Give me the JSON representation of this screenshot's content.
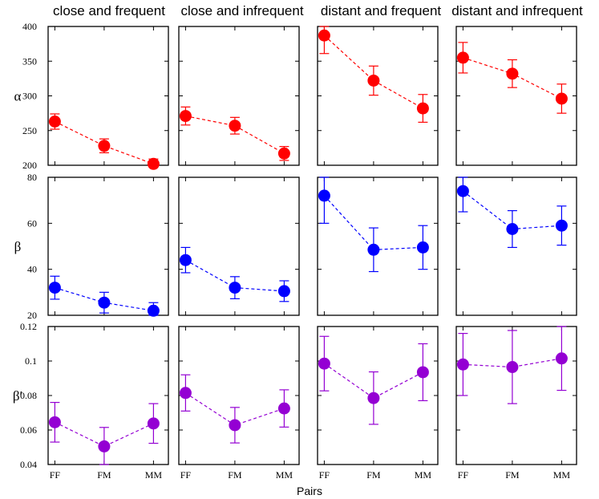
{
  "chart_data": {
    "type": "line",
    "xlabel": "Pairs",
    "categories": [
      "FF",
      "FM",
      "MM"
    ],
    "columns": [
      "close and frequent",
      "close and infrequent",
      "distant and frequent",
      "distant and infrequent"
    ],
    "rows": [
      {
        "label": "α",
        "color": "#ff0000",
        "ylim": [
          200,
          400
        ],
        "yticks": [
          "200",
          "250",
          "300",
          "350",
          "400"
        ],
        "panels": [
          {
            "values": [
              263,
              228,
              202
            ],
            "err": [
              11,
              10,
              7
            ]
          },
          {
            "values": [
              271,
              257,
              217
            ],
            "err": [
              13,
              12,
              10
            ]
          },
          {
            "values": [
              387,
              322,
              282
            ],
            "err": [
              26,
              21,
              20
            ]
          },
          {
            "values": [
              355,
              332,
              296
            ],
            "err": [
              22,
              20,
              21
            ]
          }
        ]
      },
      {
        "label": "β",
        "color": "#0000ff",
        "ylim": [
          20,
          80
        ],
        "yticks": [
          "20",
          "40",
          "60",
          "80"
        ],
        "panels": [
          {
            "values": [
              32,
              25.5,
              22
            ],
            "err": [
              5,
              4.5,
              3.5
            ]
          },
          {
            "values": [
              44,
              32,
              30.5
            ],
            "err": [
              5.5,
              4.8,
              4.5
            ]
          },
          {
            "values": [
              72,
              48.5,
              49.5
            ],
            "err": [
              12,
              9.5,
              9.5
            ]
          },
          {
            "values": [
              74,
              57.5,
              59
            ],
            "err": [
              9,
              8,
              8.5
            ]
          }
        ]
      },
      {
        "label": "β′",
        "color": "#9400d3",
        "ylim": [
          0.04,
          0.12
        ],
        "yticks": [
          "0.04",
          "0.06",
          "0.08",
          "0.1",
          "0.12"
        ],
        "panels": [
          {
            "values": [
              0.0645,
              0.0505,
              0.0638
            ],
            "err": [
              0.0115,
              0.011,
              0.0115
            ]
          },
          {
            "values": [
              0.0815,
              0.0628,
              0.0725
            ],
            "err": [
              0.0105,
              0.0103,
              0.0108
            ]
          },
          {
            "values": [
              0.0985,
              0.0785,
              0.0935
            ],
            "err": [
              0.0158,
              0.0152,
              0.0165
            ]
          },
          {
            "values": [
              0.098,
              0.0965,
              0.1015
            ],
            "err": [
              0.018,
              0.0212,
              0.0185
            ]
          }
        ]
      }
    ]
  }
}
